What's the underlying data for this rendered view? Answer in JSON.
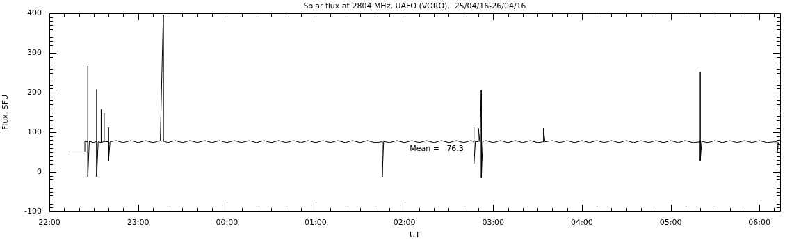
{
  "chart_data": {
    "type": "line",
    "title": "Solar flux at 2804 MHz, UAFO (VORO),  25/04/16-26/04/16",
    "xlabel": "UT",
    "ylabel": "Flux, SFU",
    "annotations": [
      "Mean =   76.3"
    ],
    "xlim": [
      "--04-25T22:00",
      "--04-26T06:14"
    ],
    "ylim": [
      -100,
      400
    ],
    "xticks": [
      {
        "value": "--04-25T22:00",
        "label": "22:00"
      },
      {
        "value": "--04-25T22:10",
        "label": null
      },
      {
        "value": "--04-25T22:20",
        "label": null
      },
      {
        "value": "--04-25T22:30",
        "label": null
      },
      {
        "value": "--04-25T22:40",
        "label": null
      },
      {
        "value": "--04-25T22:50",
        "label": null
      },
      {
        "value": "--04-25T23:00",
        "label": "23:00"
      },
      {
        "value": "--04-25T23:10",
        "label": null
      },
      {
        "value": "--04-25T23:20",
        "label": null
      },
      {
        "value": "--04-25T23:30",
        "label": null
      },
      {
        "value": "--04-25T23:40",
        "label": null
      },
      {
        "value": "--04-25T23:50",
        "label": null
      },
      {
        "value": "--04-26T00:00",
        "label": "00:00"
      },
      {
        "value": "--04-26T00:10",
        "label": null
      },
      {
        "value": "--04-26T00:20",
        "label": null
      },
      {
        "value": "--04-26T00:30",
        "label": null
      },
      {
        "value": "--04-26T00:40",
        "label": null
      },
      {
        "value": "--04-26T00:50",
        "label": null
      },
      {
        "value": "--04-26T01:00",
        "label": "01:00"
      },
      {
        "value": "--04-26T01:10",
        "label": null
      },
      {
        "value": "--04-26T01:20",
        "label": null
      },
      {
        "value": "--04-26T01:30",
        "label": null
      },
      {
        "value": "--04-26T01:40",
        "label": null
      },
      {
        "value": "--04-26T01:50",
        "label": null
      },
      {
        "value": "--04-26T02:00",
        "label": "02:00"
      },
      {
        "value": "--04-26T02:10",
        "label": null
      },
      {
        "value": "--04-26T02:20",
        "label": null
      },
      {
        "value": "--04-26T02:30",
        "label": null
      },
      {
        "value": "--04-26T02:40",
        "label": null
      },
      {
        "value": "--04-26T02:50",
        "label": null
      },
      {
        "value": "--04-26T03:00",
        "label": "03:00"
      },
      {
        "value": "--04-26T03:10",
        "label": null
      },
      {
        "value": "--04-26T03:20",
        "label": null
      },
      {
        "value": "--04-26T03:30",
        "label": null
      },
      {
        "value": "--04-26T03:40",
        "label": null
      },
      {
        "value": "--04-26T03:50",
        "label": null
      },
      {
        "value": "--04-26T04:00",
        "label": "04:00"
      },
      {
        "value": "--04-26T04:10",
        "label": null
      },
      {
        "value": "--04-26T04:20",
        "label": null
      },
      {
        "value": "--04-26T04:30",
        "label": null
      },
      {
        "value": "--04-26T04:40",
        "label": null
      },
      {
        "value": "--04-26T04:50",
        "label": null
      },
      {
        "value": "--04-26T05:00",
        "label": "05:00"
      },
      {
        "value": "--04-26T05:10",
        "label": null
      },
      {
        "value": "--04-26T05:20",
        "label": null
      },
      {
        "value": "--04-26T05:30",
        "label": null
      },
      {
        "value": "--04-26T05:40",
        "label": null
      },
      {
        "value": "--04-26T05:50",
        "label": null
      },
      {
        "value": "--04-26T06:00",
        "label": "06:00"
      },
      {
        "value": "--04-26T06:10",
        "label": null
      }
    ],
    "yticks": [
      -100,
      {
        "value": -90,
        "label": null
      },
      {
        "value": -80,
        "label": null
      },
      {
        "value": -70,
        "label": null
      },
      {
        "value": -60,
        "label": null
      },
      {
        "value": -50,
        "label": null
      },
      {
        "value": -40,
        "label": null
      },
      {
        "value": -30,
        "label": null
      },
      {
        "value": -20,
        "label": null
      },
      {
        "value": -10,
        "label": null
      },
      0,
      {
        "value": 10,
        "label": null
      },
      {
        "value": 20,
        "label": null
      },
      {
        "value": 30,
        "label": null
      },
      {
        "value": 40,
        "label": null
      },
      {
        "value": 50,
        "label": null
      },
      {
        "value": 60,
        "label": null
      },
      {
        "value": 70,
        "label": null
      },
      {
        "value": 80,
        "label": null
      },
      {
        "value": 90,
        "label": null
      },
      100,
      {
        "value": 110,
        "label": null
      },
      {
        "value": 120,
        "label": null
      },
      {
        "value": 130,
        "label": null
      },
      {
        "value": 140,
        "label": null
      },
      {
        "value": 150,
        "label": null
      },
      {
        "value": 160,
        "label": null
      },
      {
        "value": 170,
        "label": null
      },
      {
        "value": 180,
        "label": null
      },
      {
        "value": 190,
        "label": null
      },
      200,
      {
        "value": 210,
        "label": null
      },
      {
        "value": 220,
        "label": null
      },
      {
        "value": 230,
        "label": null
      },
      {
        "value": 240,
        "label": null
      },
      {
        "value": 250,
        "label": null
      },
      {
        "value": 260,
        "label": null
      },
      {
        "value": 270,
        "label": null
      },
      {
        "value": 280,
        "label": null
      },
      {
        "value": 290,
        "label": null
      },
      300,
      {
        "value": 310,
        "label": null
      },
      {
        "value": 320,
        "label": null
      },
      {
        "value": 330,
        "label": null
      },
      {
        "value": 340,
        "label": null
      },
      {
        "value": 350,
        "label": null
      },
      {
        "value": 360,
        "label": null
      },
      {
        "value": 370,
        "label": null
      },
      {
        "value": 380,
        "label": null
      },
      {
        "value": 390,
        "label": null
      },
      400
    ],
    "series": [
      {
        "color": "#000000",
        "x": [
          "--04-25T22:15",
          "--04-25T22:24",
          "--04-25T22:24",
          "--04-25T22:26",
          "--04-25T22:26",
          "--04-25T22:26",
          "--04-25T22:27",
          "--04-25T22:30",
          "--04-25T22:32",
          "--04-25T22:32",
          "--04-25T22:32",
          "--04-25T22:33",
          "--04-25T22:35",
          "--04-25T22:35",
          "--04-25T22:35",
          "--04-25T22:37",
          "--04-25T22:37",
          "--04-25T22:37",
          "--04-25T22:40",
          "--04-25T22:40",
          "--04-25T22:40",
          "--04-25T22:41",
          "--04-25T22:45",
          "--04-25T22:50",
          "--04-25T22:55",
          "--04-25T23:00",
          "--04-25T23:05",
          "--04-25T23:10",
          "--04-25T23:15",
          "--04-25T23:17",
          "--04-25T23:17",
          "--04-25T23:18",
          "--04-25T23:20",
          "--04-25T23:25",
          "--04-25T23:30",
          "--04-25T23:35",
          "--04-25T23:40",
          "--04-25T23:45",
          "--04-25T23:50",
          "--04-25T23:55",
          "--04-26T00:00",
          "--04-26T00:05",
          "--04-26T00:10",
          "--04-26T00:15",
          "--04-26T00:20",
          "--04-26T00:25",
          "--04-26T00:30",
          "--04-26T00:35",
          "--04-26T00:40",
          "--04-26T00:45",
          "--04-26T00:50",
          "--04-26T00:55",
          "--04-26T01:00",
          "--04-26T01:05",
          "--04-26T01:10",
          "--04-26T01:15",
          "--04-26T01:20",
          "--04-26T01:25",
          "--04-26T01:30",
          "--04-26T01:35",
          "--04-26T01:40",
          "--04-26T01:45",
          "--04-26T01:45",
          "--04-26T01:46",
          "--04-26T01:50",
          "--04-26T01:55",
          "--04-26T02:00",
          "--04-26T02:05",
          "--04-26T02:10",
          "--04-26T02:15",
          "--04-26T02:20",
          "--04-26T02:25",
          "--04-26T02:30",
          "--04-26T02:35",
          "--04-26T02:40",
          "--04-26T02:45",
          "--04-26T02:47",
          "--04-26T02:47",
          "--04-26T02:47",
          "--04-26T02:48",
          "--04-26T02:50",
          "--04-26T02:50",
          "--04-26T02:51",
          "--04-26T02:52",
          "--04-26T02:52",
          "--04-26T02:53",
          "--04-26T02:55",
          "--04-26T03:00",
          "--04-26T03:05",
          "--04-26T03:10",
          "--04-26T03:15",
          "--04-26T03:20",
          "--04-26T03:25",
          "--04-26T03:30",
          "--04-26T03:34",
          "--04-26T03:34",
          "--04-26T03:35",
          "--04-26T03:40",
          "--04-26T03:45",
          "--04-26T03:50",
          "--04-26T03:55",
          "--04-26T04:00",
          "--04-26T04:05",
          "--04-26T04:10",
          "--04-26T04:15",
          "--04-26T04:20",
          "--04-26T04:25",
          "--04-26T04:30",
          "--04-26T04:35",
          "--04-26T04:40",
          "--04-26T04:45",
          "--04-26T04:50",
          "--04-26T04:55",
          "--04-26T05:00",
          "--04-26T05:05",
          "--04-26T05:10",
          "--04-26T05:15",
          "--04-26T05:20",
          "--04-26T05:20",
          "--04-26T05:20",
          "--04-26T05:21",
          "--04-26T05:25",
          "--04-26T05:30",
          "--04-26T05:35",
          "--04-26T05:40",
          "--04-26T05:45",
          "--04-26T05:50",
          "--04-26T05:55",
          "--04-26T06:00",
          "--04-26T06:05",
          "--04-26T06:10",
          "--04-26T06:12",
          "--04-26T06:12",
          "--04-26T06:13"
        ],
        "values": [
          50,
          50,
          78,
          75,
          266,
          -12,
          77,
          74,
          77,
          208,
          -12,
          76,
          74,
          158,
          74,
          77,
          148,
          77,
          76,
          112,
          27,
          76,
          79,
          74,
          79,
          74,
          79,
          74,
          79,
          396,
          77,
          77,
          74,
          79,
          74,
          79,
          74,
          79,
          74,
          79,
          74,
          79,
          74,
          79,
          74,
          79,
          74,
          79,
          74,
          79,
          74,
          79,
          74,
          79,
          74,
          79,
          74,
          79,
          74,
          79,
          74,
          76,
          -14,
          77,
          74,
          79,
          74,
          79,
          74,
          79,
          74,
          79,
          74,
          79,
          74,
          79,
          76,
          112,
          20,
          77,
          76,
          110,
          76,
          205,
          -15,
          77,
          79,
          74,
          79,
          74,
          79,
          74,
          79,
          74,
          76,
          110,
          76,
          79,
          74,
          79,
          74,
          79,
          74,
          79,
          74,
          79,
          74,
          79,
          74,
          79,
          74,
          79,
          74,
          79,
          74,
          79,
          74,
          76,
          252,
          28,
          77,
          74,
          79,
          74,
          79,
          74,
          79,
          74,
          79,
          74,
          76,
          76,
          51,
          75
        ]
      }
    ]
  }
}
